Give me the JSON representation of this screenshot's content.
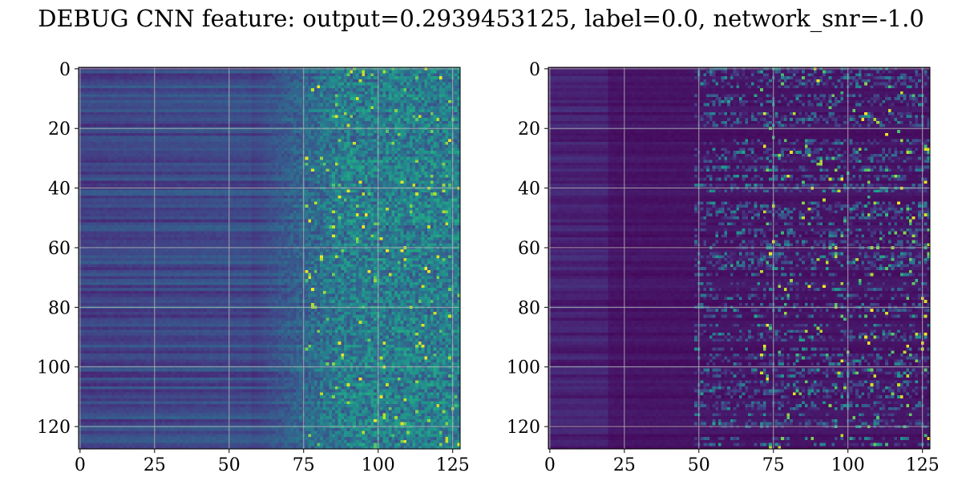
{
  "title": "DEBUG CNN feature: output=0.2939453125, label=0.0, network_snr=-1.0",
  "colors": {
    "colormap": "viridis",
    "grid": "#b0b0b0",
    "axes": "#000000"
  },
  "chart_data": [
    {
      "type": "heatmap",
      "title": "",
      "xlabel": "",
      "ylabel": "",
      "xlim": [
        0,
        127
      ],
      "ylim": [
        127,
        0
      ],
      "xticks": [
        0,
        25,
        50,
        75,
        100,
        125
      ],
      "yticks": [
        0,
        20,
        40,
        60,
        80,
        100,
        120
      ],
      "grid": true,
      "shape": [
        128,
        128
      ],
      "value_range": [
        0.0,
        1.0
      ],
      "pattern": "low values (~0.15-0.3) in columns 0-60 with horizontal row banding; noisy higher values (~0.3-1.0) in columns 75-127 with scattered bright pixels"
    },
    {
      "type": "heatmap",
      "title": "",
      "xlabel": "",
      "ylabel": "",
      "xlim": [
        0,
        127
      ],
      "ylim": [
        127,
        0
      ],
      "xticks": [
        0,
        25,
        50,
        75,
        100,
        125
      ],
      "yticks": [
        0,
        20,
        40,
        60,
        80,
        100,
        120
      ],
      "grid": true,
      "shape": [
        128,
        128
      ],
      "value_range": [
        0.0,
        1.0
      ],
      "pattern": "near-zero in columns 0-50 (dark purple); horizontal streaks of moderate-to-high values in columns 50-127"
    }
  ]
}
